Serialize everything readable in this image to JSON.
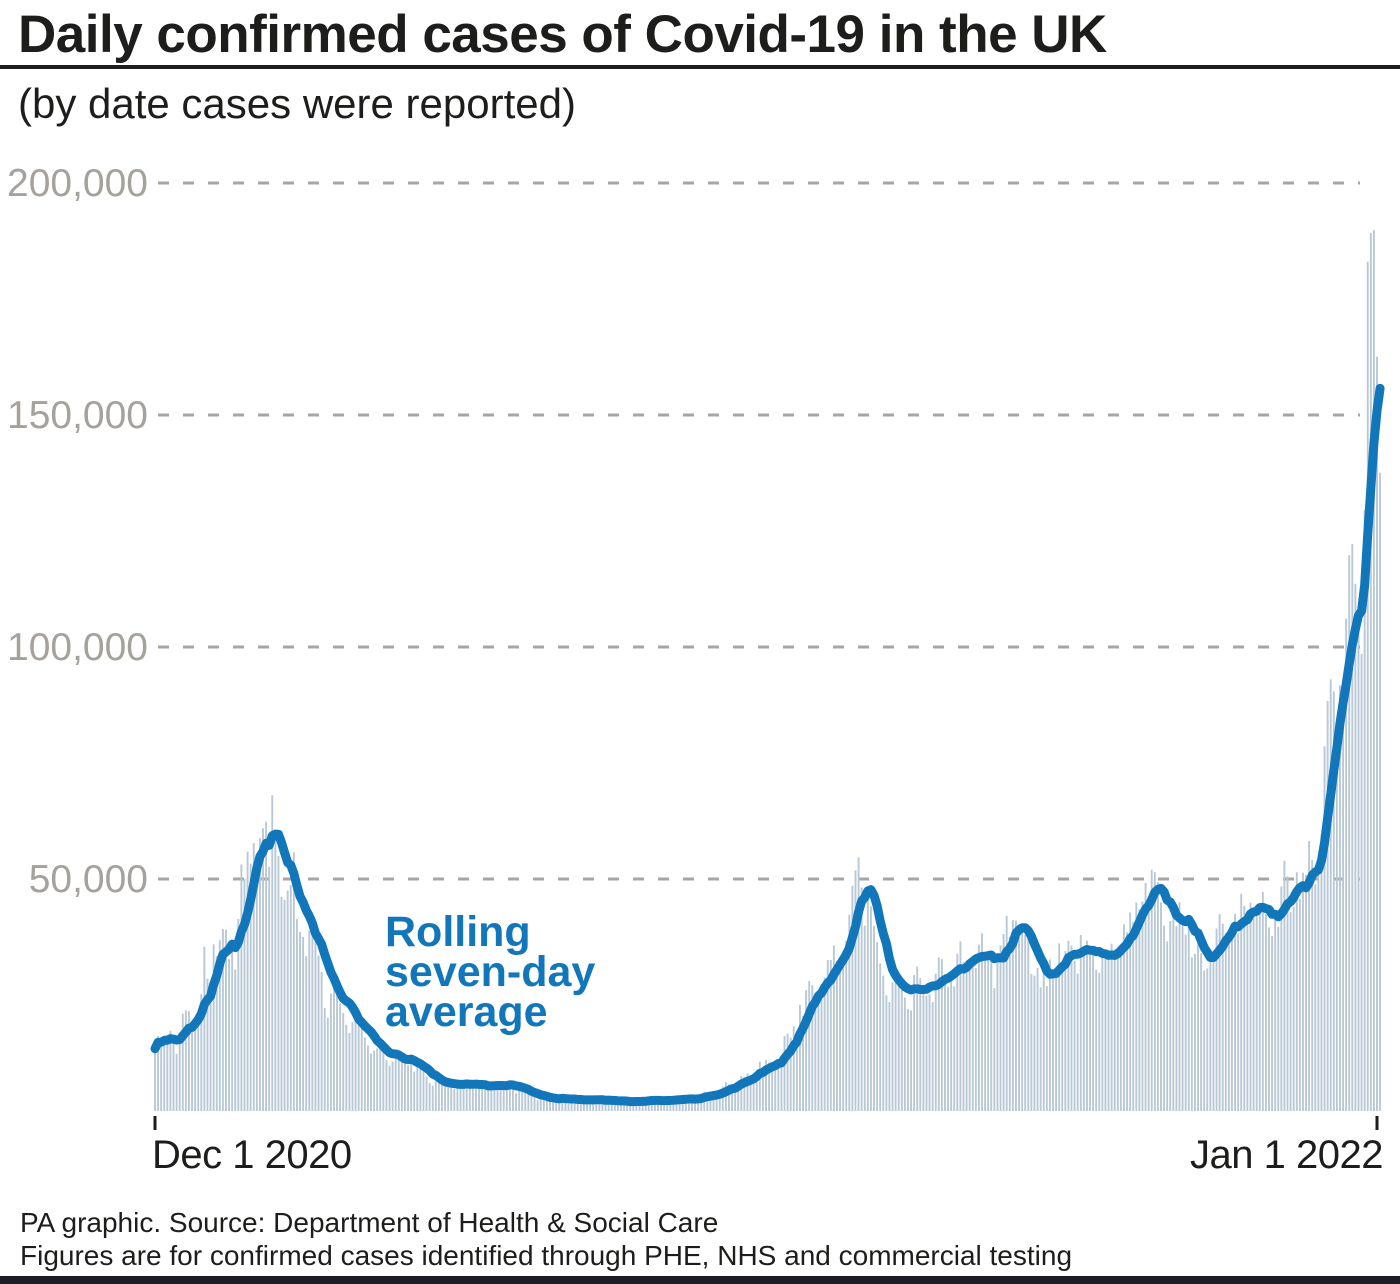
{
  "header": {
    "title": "Daily confirmed cases of Covid-19 in the UK",
    "subtitle": "(by date cases were reported)"
  },
  "annotation": {
    "lines": [
      "Rolling",
      "seven-day",
      "average"
    ]
  },
  "footer": {
    "line1": "PA graphic. Source: Department of Health & Social Care",
    "line2": "Figures are for confirmed cases identified through PHE, NHS and commercial testing"
  },
  "colors": {
    "bar": "#b9c8d5",
    "line": "#1277ba",
    "grid": "#a9a5a0",
    "axis_label": "#a5a19c",
    "text": "#1d1d1b",
    "footer_bar": "#1d1d26"
  },
  "chart_data": {
    "type": "bar+line",
    "title": "Daily confirmed cases of Covid-19 in the UK",
    "subtitle": "(by date cases were reported)",
    "x_start_date": "Dec 1 2020",
    "x_end_date": "Jan 2 2022",
    "ylim": [
      0,
      210000
    ],
    "grid": "horizontal dashed",
    "legend_position": "inline annotation on line series",
    "y_ticks": [
      {
        "value": 50000,
        "label": "50,000"
      },
      {
        "value": 100000,
        "label": "100,000"
      },
      {
        "value": 150000,
        "label": "150,000"
      },
      {
        "value": 200000,
        "label": "200,000"
      }
    ],
    "x_ticks": [
      {
        "label": "Dec 1 2020",
        "day_index": 0
      },
      {
        "label": "Jan 1 2022",
        "day_index": 396
      }
    ],
    "series": [
      {
        "name": "Daily confirmed cases",
        "type": "bar",
        "start_date": "2020-12-01",
        "values": [
          13430,
          16170,
          14879,
          16298,
          15539,
          17272,
          14718,
          12282,
          16578,
          20964,
          21672,
          21502,
          18447,
          20263,
          18450,
          25161,
          35383,
          28507,
          27052,
          35928,
          33364,
          36804,
          39237,
          39036,
          32725,
          34693,
          30501,
          41385,
          53135,
          50023,
          55892,
          53285,
          57725,
          54990,
          58784,
          60916,
          62322,
          52618,
          68053,
          59937,
          54940,
          46169,
          45533,
          47525,
          48682,
          55761,
          41346,
          38598,
          37535,
          33355,
          38905,
          37892,
          40261,
          33552,
          30004,
          22195,
          20089,
          25308,
          28680,
          29079,
          23275,
          21088,
          18607,
          16840,
          19202,
          20634,
          19114,
          18262,
          15845,
          14104,
          12364,
          13013,
          13494,
          15144,
          13308,
          10972,
          9765,
          10625,
          12718,
          12057,
          12027,
          10406,
          9834,
          10641,
          8489,
          9938,
          9985,
          8523,
          7434,
          6035,
          5455,
          6391,
          6385,
          6573,
          5947,
          6040,
          5177,
          4712,
          5766,
          5926,
          6609,
          6607,
          5534,
          5118,
          5089,
          5294,
          5758,
          6303,
          4802,
          5587,
          5312,
          5342,
          5379,
          5605,
          6187,
          6187,
          5312,
          3862,
          4654,
          4040,
          4052,
          4479,
          3402,
          3423,
          2297,
          2762,
          3013,
          2763,
          3030,
          2490,
          2589,
          1730,
          3568,
          2472,
          2491,
          2672,
          2596,
          1882,
          1712,
          2963,
          2524,
          2396,
          2729,
          2678,
          2061,
          1712,
          2064,
          2685,
          2166,
          2445,
          2381,
          1907,
          1671,
          1649,
          1946,
          2144,
          2613,
          2490,
          2047,
          1770,
          2357,
          2474,
          2284,
          2657,
          2193,
          1979,
          1926,
          2412,
          2696,
          2874,
          2829,
          2694,
          2235,
          2439,
          2493,
          2405,
          3180,
          3542,
          4182,
          3398,
          3240,
          3383,
          3165,
          4330,
          5274,
          6238,
          5765,
          5341,
          4330,
          6048,
          7540,
          7393,
          8125,
          7738,
          7490,
          7742,
          10633,
          9055,
          11007,
          10476,
          10321,
          9284,
          10821,
          11625,
          16135,
          16703,
          15810,
          18270,
          14876,
          22868,
          20479,
          26068,
          27989,
          27125,
          24885,
          24248,
          27334,
          28773,
          32548,
          32551,
          35707,
          32367,
          31772,
          34471,
          36660,
          42302,
          48553,
          51870,
          54674,
          48161,
          39950,
          46558,
          44104,
          39906,
          36389,
          31795,
          29173,
          24950,
          23511,
          27734,
          31117,
          29622,
          26144,
          24470,
          21952,
          21691,
          29312,
          31117,
          28612,
          26144,
          24860,
          25161,
          23510,
          29612,
          33074,
          32700,
          29520,
          26750,
          28438,
          26852,
          33904,
          36572,
          32058,
          31925,
          32253,
          31914,
          30838,
          35847,
          38281,
          32406,
          32748,
          33196,
          26476,
          32181,
          35693,
          38154,
          42076,
          37578,
          41192,
          41051,
          37489,
          38975,
          38013,
          37622,
          29547,
          29173,
          30825,
          26628,
          30597,
          26911,
          32651,
          30144,
          29612,
          36100,
          31564,
          34460,
          36710,
          35623,
          32417,
          29612,
          37960,
          34526,
          36722,
          35577,
          35577,
          30439,
          29781,
          35077,
          33869,
          34526,
          36060,
          34950,
          33012,
          34574,
          40224,
          38520,
          42776,
          40701,
          44932,
          43423,
          45140,
          49156,
          43738,
          52009,
          51484,
          49298,
          44985,
          39962,
          36567,
          40954,
          43941,
          39842,
          44985,
          41278,
          38009,
          40077,
          33117,
          33865,
          37269,
          34029,
          30305,
          30693,
          32322,
          33117,
          39329,
          42484,
          40375,
          38351,
          36120,
          39705,
          42484,
          38263,
          46807,
          44242,
          40941,
          44917,
          42533,
          43676,
          43710,
          47240,
          42408,
          39567,
          37681,
          42583,
          39716,
          48374,
          53945,
          50584,
          42848,
          43992,
          51459,
          45691,
          51342,
          50867,
          58194,
          54073,
          48854,
          54661,
          59610,
          78610,
          88376,
          93045,
          90418,
          82886,
          91743,
          90629,
          106122,
          119789,
          122186,
          113628,
          103558,
          98515,
          129471,
          183037,
          189213,
          189846,
          162572,
          137583
        ]
      },
      {
        "name": "Rolling seven-day average",
        "type": "line",
        "derived_from": "7-day trailing mean of Daily confirmed cases"
      }
    ]
  }
}
